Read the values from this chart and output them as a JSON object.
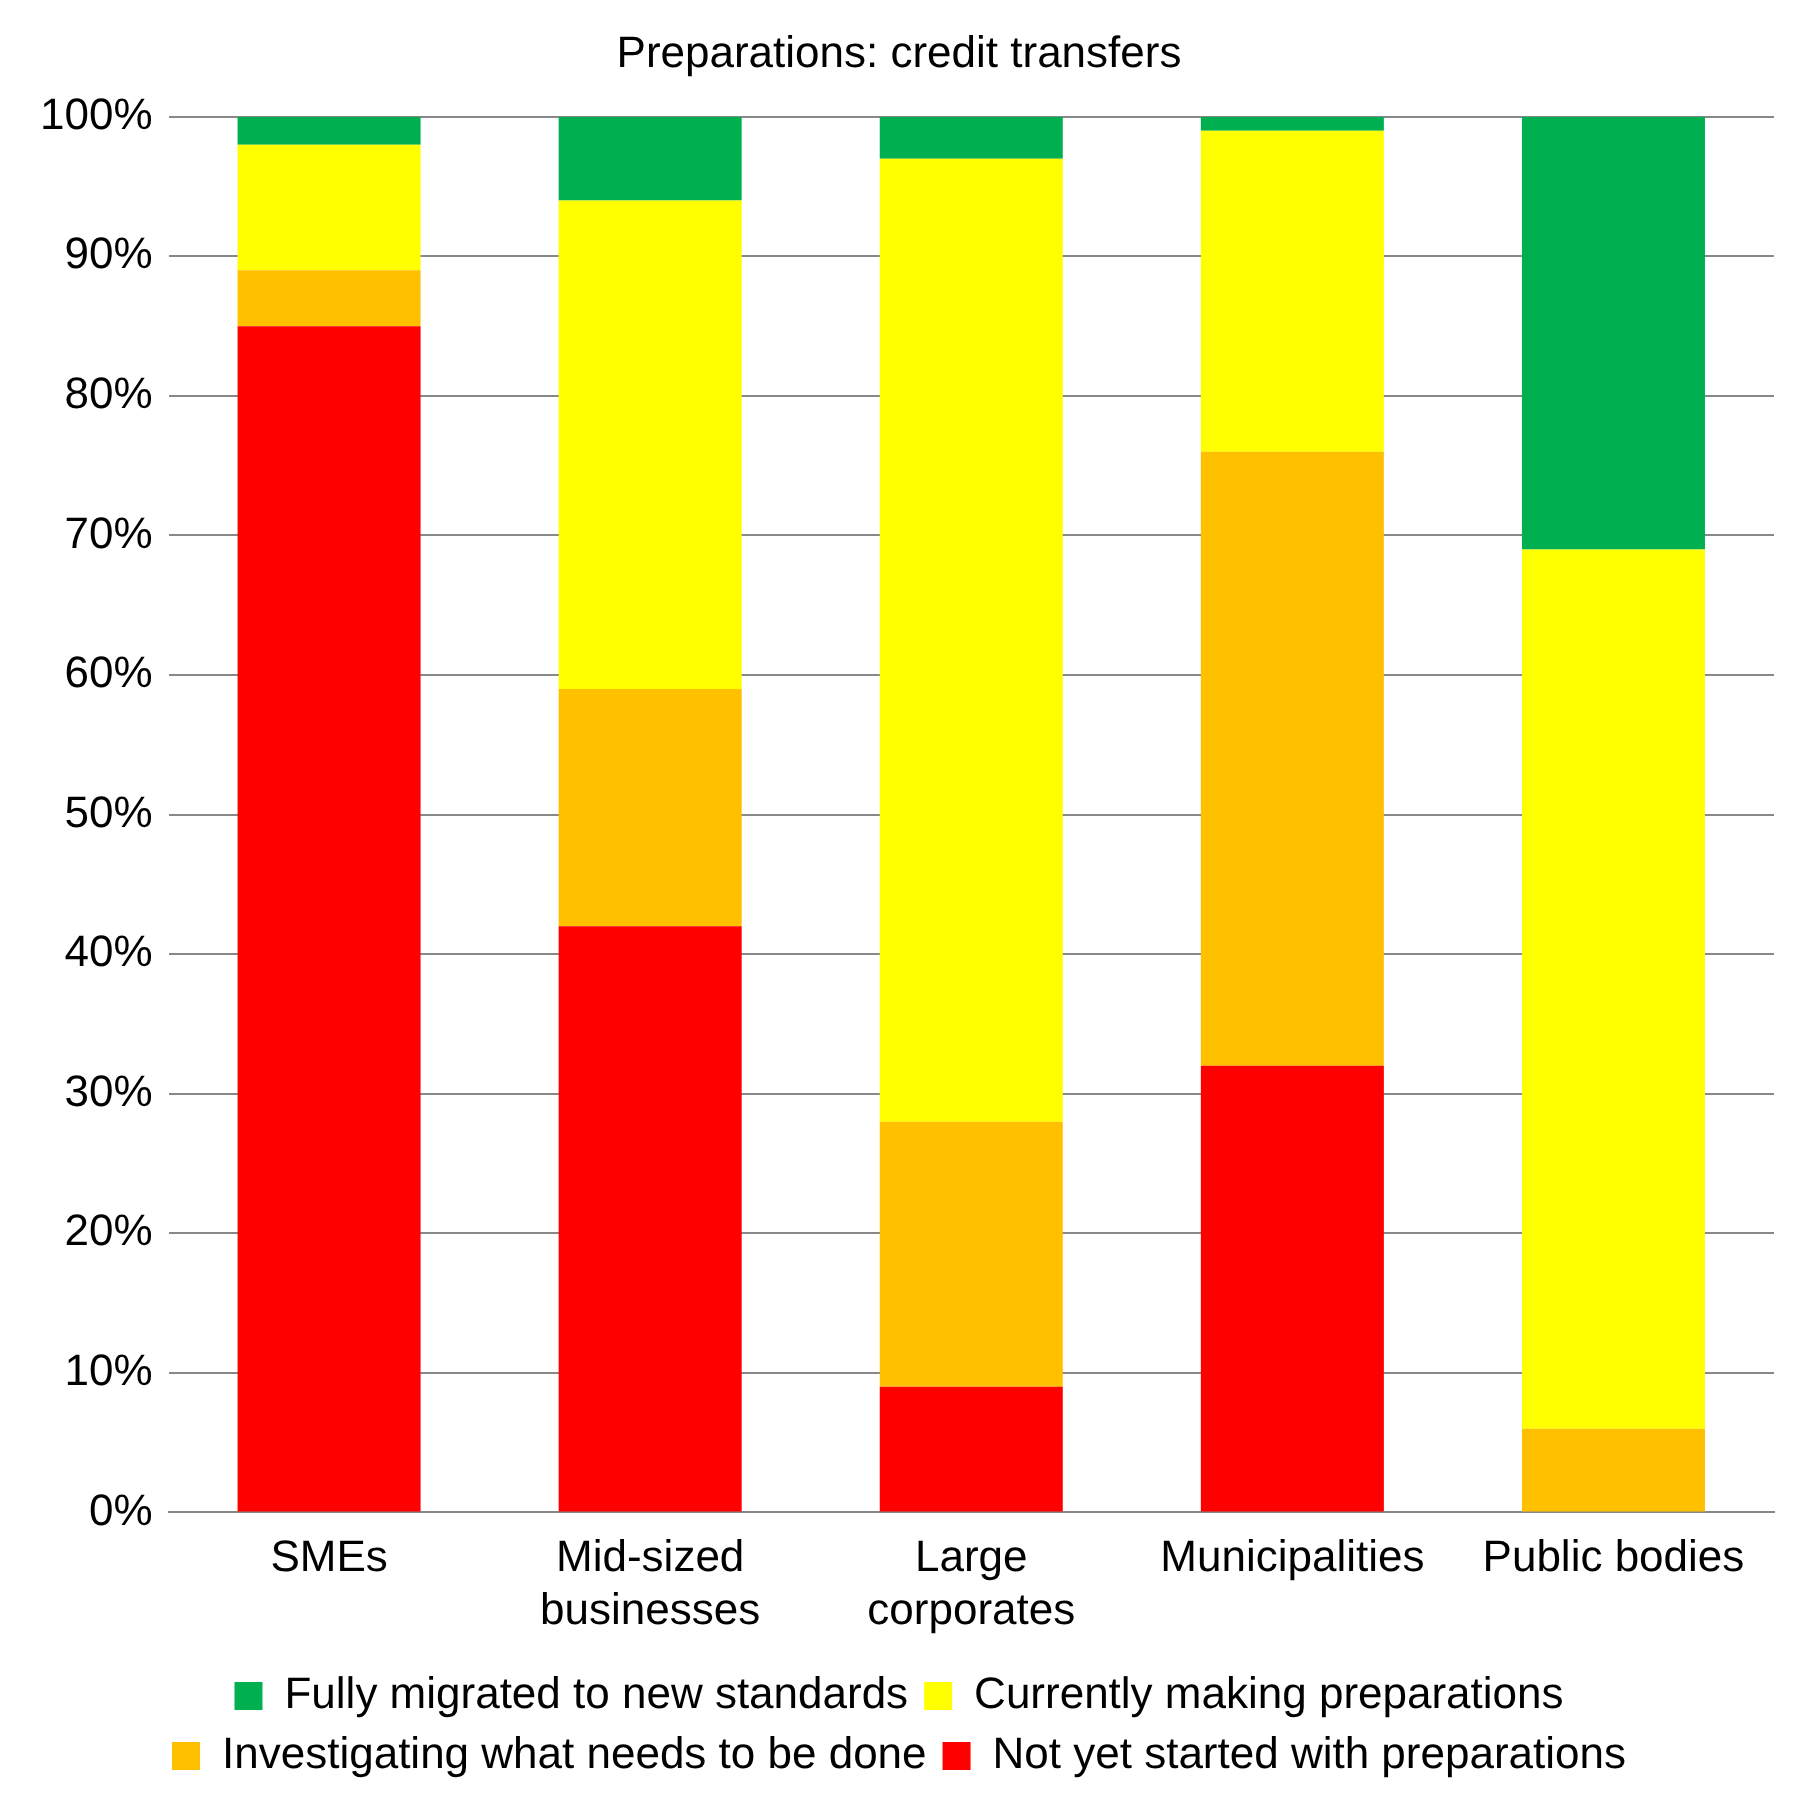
{
  "chart_data": {
    "type": "bar",
    "title": "Preparations: credit transfers",
    "stacked": true,
    "categories": [
      "SMEs",
      "Mid-sized businesses",
      "Large corporates",
      "Municipalities",
      "Public bodies"
    ],
    "series": [
      {
        "name": "Not yet started with preparations",
        "color": "#ff0000",
        "values": [
          85,
          42,
          9,
          32,
          0
        ]
      },
      {
        "name": "Investigating what needs to be done",
        "color": "#ffc000",
        "values": [
          4,
          17,
          19,
          44,
          6
        ]
      },
      {
        "name": "Currently making preparations",
        "color": "#ffff00",
        "values": [
          9,
          35,
          69,
          23,
          63
        ]
      },
      {
        "name": "Fully migrated to new standards",
        "color": "#00b050",
        "values": [
          2,
          6,
          3,
          1,
          31
        ]
      }
    ],
    "ylim": [
      0,
      100
    ],
    "yticks": [
      {
        "value": 0,
        "label": "0%"
      },
      {
        "value": 10,
        "label": "10%"
      },
      {
        "value": 20,
        "label": "20%"
      },
      {
        "value": 30,
        "label": "30%"
      },
      {
        "value": 40,
        "label": "40%"
      },
      {
        "value": 50,
        "label": "50%"
      },
      {
        "value": 60,
        "label": "60%"
      },
      {
        "value": 70,
        "label": "70%"
      },
      {
        "value": 80,
        "label": "80%"
      },
      {
        "value": 90,
        "label": "90%"
      },
      {
        "value": 100,
        "label": "100%"
      }
    ],
    "grid": "y",
    "legend": "bottom"
  }
}
